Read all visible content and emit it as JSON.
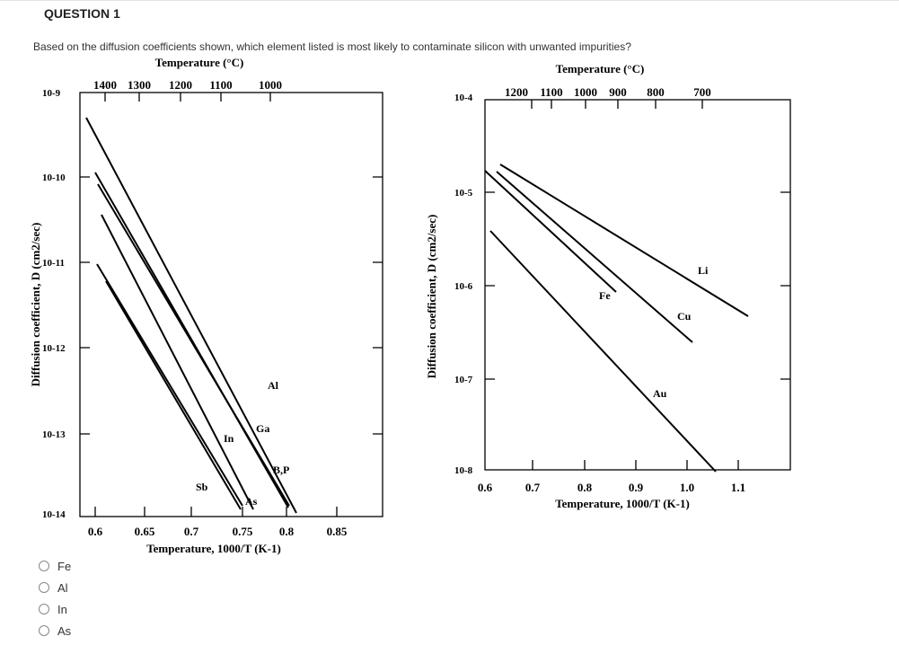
{
  "question": {
    "title": "QUESTION 1",
    "text": "Based on the diffusion coefficients shown, which element listed is most likely to contaminate silicon with unwanted impurities?"
  },
  "options": [
    {
      "label": "Fe",
      "selected": false
    },
    {
      "label": "Al",
      "selected": false
    },
    {
      "label": "In",
      "selected": false
    },
    {
      "label": "As",
      "selected": false
    }
  ],
  "chart_data": [
    {
      "type": "line",
      "x_scale": "reciprocal-temperature",
      "y_scale": "log",
      "top_axis_title": "Temperature (°C)",
      "top_ticks": [
        "1400",
        "1300",
        "1200",
        "1100",
        "1000"
      ],
      "xlabel": "Temperature, 1000/T (K-1)",
      "ylabel": "Diffusion coefficient, D (cm2/sec)",
      "xlim": [
        0.59,
        0.87
      ],
      "x_ticks": [
        "0.6",
        "0.65",
        "0.7",
        "0.75",
        "0.8",
        "0.85"
      ],
      "ylim": [
        1e-14,
        1e-09
      ],
      "y_ticks": [
        "10-9",
        "10-10",
        "10-11",
        "10-12",
        "10-13",
        "10-14"
      ],
      "series": [
        {
          "name": "Al",
          "x": [
            0.593,
            0.816
          ],
          "y": [
            2.5e-10,
            1.5e-14
          ],
          "label_at": [
            0.763,
            6e-13
          ]
        },
        {
          "name": "Ga",
          "x": [
            0.602,
            0.807
          ],
          "y": [
            9e-11,
            1e-14
          ],
          "label_at": [
            0.749,
            2e-13
          ]
        },
        {
          "name": "B,P",
          "x": [
            0.603,
            0.808
          ],
          "y": [
            6e-11,
            1.8e-14
          ],
          "label_at": [
            0.777,
            7e-14
          ]
        },
        {
          "name": "In",
          "x": [
            0.607,
            0.768
          ],
          "y": [
            2.5e-11,
            1e-14
          ],
          "label_at": [
            0.721,
            1.5e-13
          ]
        },
        {
          "name": "As",
          "x": [
            0.612,
            0.755
          ],
          "y": [
            2e-12,
            1e-14
          ],
          "label_at": [
            0.741,
            3e-14
          ]
        },
        {
          "name": "Sb",
          "x": [
            0.6,
            0.755
          ],
          "y": [
            8e-12,
            1.2e-14
          ],
          "label_at": [
            0.713,
            4.5e-14
          ]
        }
      ]
    },
    {
      "type": "line",
      "x_scale": "reciprocal-temperature",
      "y_scale": "log",
      "top_axis_title": "Temperature (°C)",
      "top_ticks": [
        "1200",
        "1100",
        "1000",
        "900",
        "800",
        "700"
      ],
      "xlabel": "Temperature, 1000/T (K-1)",
      "ylabel": "Diffusion coefficient, D (cm2/sec)",
      "xlim": [
        0.6,
        1.17
      ],
      "x_ticks": [
        "0.6",
        "0.7",
        "0.8",
        "0.9",
        "1.0",
        "1.1"
      ],
      "ylim": [
        1e-08,
        0.0001
      ],
      "y_ticks": [
        "10-4",
        "10-5",
        "10-6",
        "10-7",
        "10-8"
      ],
      "series": [
        {
          "name": "Li",
          "x": [
            0.63,
            1.12
          ],
          "y": [
            2e-05,
            2.5e-07
          ],
          "label_at": [
            1.04,
            1.2e-06
          ]
        },
        {
          "name": "Cu",
          "x": [
            0.625,
            1.01
          ],
          "y": [
            1.6e-05,
            1.4e-07
          ],
          "label_at": [
            0.995,
            5e-07
          ]
        },
        {
          "name": "Fe",
          "x": [
            0.6,
            0.84
          ],
          "y": [
            2e-05,
            9e-07
          ],
          "label_at": [
            0.82,
            8.5e-07
          ]
        },
        {
          "name": "Au",
          "x": [
            0.61,
            1.05
          ],
          "y": [
            5.5e-06,
            1e-08
          ],
          "label_at": [
            0.935,
            8e-08
          ]
        }
      ]
    }
  ]
}
